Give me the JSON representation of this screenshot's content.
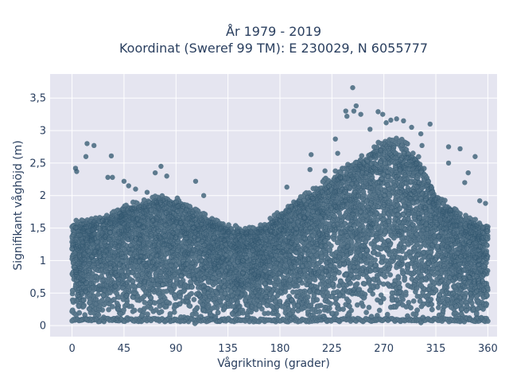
{
  "chart_data": {
    "type": "scatter",
    "title_line1": "År 1979 - 2019",
    "title_line2": "Koordinat (Sweref 99 TM): E 230029, N 6055777",
    "xlabel": "Vågriktning (grader)",
    "ylabel": "Signifikant våghöjd (m)",
    "xlim": [
      -19,
      368
    ],
    "ylim": [
      -0.17,
      3.87
    ],
    "x_ticks": [
      {
        "value": 0,
        "label": "0"
      },
      {
        "value": 45,
        "label": "45"
      },
      {
        "value": 90,
        "label": "90"
      },
      {
        "value": 135,
        "label": "135"
      },
      {
        "value": 180,
        "label": "180"
      },
      {
        "value": 225,
        "label": "225"
      },
      {
        "value": 270,
        "label": "270"
      },
      {
        "value": 315,
        "label": "315"
      },
      {
        "value": 360,
        "label": "360"
      }
    ],
    "y_ticks": [
      {
        "value": 0,
        "label": "0"
      },
      {
        "value": 0.5,
        "label": "0,5"
      },
      {
        "value": 1,
        "label": "1"
      },
      {
        "value": 1.5,
        "label": "1,5"
      },
      {
        "value": 2,
        "label": "2"
      },
      {
        "value": 2.5,
        "label": "2,5"
      },
      {
        "value": 3,
        "label": "3"
      },
      {
        "value": 3.5,
        "label": "3,5"
      }
    ],
    "grid": true,
    "marker_color": "#2f566e",
    "envelope": {
      "x": [
        0,
        15,
        30,
        45,
        60,
        75,
        90,
        105,
        120,
        135,
        150,
        165,
        180,
        195,
        210,
        225,
        240,
        255,
        270,
        285,
        300,
        315,
        330,
        345,
        360
      ],
      "y_max": [
        1.55,
        1.6,
        1.65,
        1.8,
        1.85,
        1.95,
        1.9,
        1.75,
        1.6,
        1.5,
        1.45,
        1.5,
        1.7,
        1.9,
        2.05,
        2.25,
        2.45,
        2.6,
        2.8,
        2.8,
        2.5,
        2.0,
        1.75,
        1.6,
        1.5
      ]
    },
    "outliers": [
      {
        "x": 3,
        "y": 2.42
      },
      {
        "x": 4,
        "y": 2.37
      },
      {
        "x": 12,
        "y": 2.6
      },
      {
        "x": 13,
        "y": 2.8
      },
      {
        "x": 19,
        "y": 2.77
      },
      {
        "x": 34,
        "y": 2.61
      },
      {
        "x": 31,
        "y": 2.28
      },
      {
        "x": 35,
        "y": 2.28
      },
      {
        "x": 45,
        "y": 2.22
      },
      {
        "x": 49,
        "y": 2.15
      },
      {
        "x": 72,
        "y": 2.35
      },
      {
        "x": 77,
        "y": 2.45
      },
      {
        "x": 82,
        "y": 2.3
      },
      {
        "x": 107,
        "y": 2.22
      },
      {
        "x": 114,
        "y": 2.0
      },
      {
        "x": 186,
        "y": 2.13
      },
      {
        "x": 207,
        "y": 2.63
      },
      {
        "x": 206,
        "y": 2.4
      },
      {
        "x": 219,
        "y": 2.38
      },
      {
        "x": 228,
        "y": 2.87
      },
      {
        "x": 230,
        "y": 2.65
      },
      {
        "x": 237,
        "y": 3.3
      },
      {
        "x": 238,
        "y": 3.22
      },
      {
        "x": 243,
        "y": 3.66
      },
      {
        "x": 244,
        "y": 3.3
      },
      {
        "x": 246,
        "y": 3.38
      },
      {
        "x": 250,
        "y": 3.25
      },
      {
        "x": 258,
        "y": 3.02
      },
      {
        "x": 265,
        "y": 3.29
      },
      {
        "x": 269,
        "y": 3.25
      },
      {
        "x": 272,
        "y": 3.12
      },
      {
        "x": 276,
        "y": 3.16
      },
      {
        "x": 281,
        "y": 3.18
      },
      {
        "x": 287,
        "y": 3.15
      },
      {
        "x": 294,
        "y": 3.05
      },
      {
        "x": 302,
        "y": 2.95
      },
      {
        "x": 310,
        "y": 3.1
      },
      {
        "x": 303,
        "y": 2.77
      },
      {
        "x": 326,
        "y": 2.75
      },
      {
        "x": 326,
        "y": 2.5
      },
      {
        "x": 336,
        "y": 2.72
      },
      {
        "x": 343,
        "y": 2.35
      },
      {
        "x": 349,
        "y": 2.6
      },
      {
        "x": 353,
        "y": 1.92
      },
      {
        "x": 358,
        "y": 1.88
      },
      {
        "x": 340,
        "y": 2.2
      },
      {
        "x": 55,
        "y": 2.1
      },
      {
        "x": 65,
        "y": 2.05
      }
    ]
  }
}
